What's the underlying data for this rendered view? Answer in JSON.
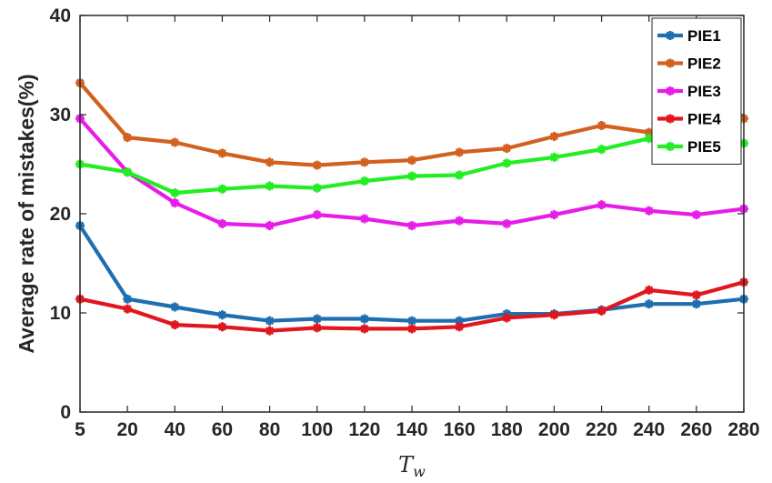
{
  "chart_data": {
    "type": "line",
    "title": "",
    "xlabel": "T",
    "xlabel_sub": "w",
    "ylabel": "Average rate of mistakes(%)",
    "x": [
      5,
      20,
      40,
      60,
      80,
      100,
      120,
      140,
      160,
      180,
      200,
      220,
      240,
      260,
      280
    ],
    "x_ticks": [
      "5",
      "20",
      "40",
      "60",
      "80",
      "100",
      "120",
      "140",
      "160",
      "180",
      "200",
      "220",
      "240",
      "260",
      "280"
    ],
    "y_ticks": [
      "0",
      "10",
      "20",
      "30",
      "40"
    ],
    "ylim": [
      0,
      40
    ],
    "x_scale": "categorical",
    "grid": false,
    "legend_position": "top-right",
    "series": [
      {
        "name": "PIE1",
        "color": "#1F6FB0",
        "values": [
          18.8,
          11.4,
          10.6,
          9.8,
          9.2,
          9.4,
          9.4,
          9.2,
          9.2,
          9.9,
          9.9,
          10.3,
          10.9,
          10.9,
          11.4
        ]
      },
      {
        "name": "PIE2",
        "color": "#D2601E",
        "values": [
          33.2,
          27.7,
          27.2,
          26.1,
          25.2,
          24.9,
          25.2,
          25.4,
          26.2,
          26.6,
          27.8,
          28.9,
          28.2,
          28.7,
          29.6
        ]
      },
      {
        "name": "PIE3",
        "color": "#E81CE8",
        "values": [
          29.6,
          24.2,
          21.1,
          19.0,
          18.8,
          19.9,
          19.5,
          18.8,
          19.3,
          19.0,
          19.9,
          20.9,
          20.3,
          19.9,
          20.5
        ]
      },
      {
        "name": "PIE4",
        "color": "#E0171E",
        "values": [
          11.4,
          10.4,
          8.8,
          8.6,
          8.2,
          8.5,
          8.4,
          8.4,
          8.6,
          9.5,
          9.8,
          10.2,
          12.3,
          11.8,
          13.1
        ]
      },
      {
        "name": "PIE5",
        "color": "#22EE22",
        "values": [
          25.0,
          24.2,
          22.1,
          22.5,
          22.8,
          22.6,
          23.3,
          23.8,
          23.9,
          25.1,
          25.7,
          26.5,
          27.6,
          27.2,
          27.1
        ]
      }
    ]
  }
}
